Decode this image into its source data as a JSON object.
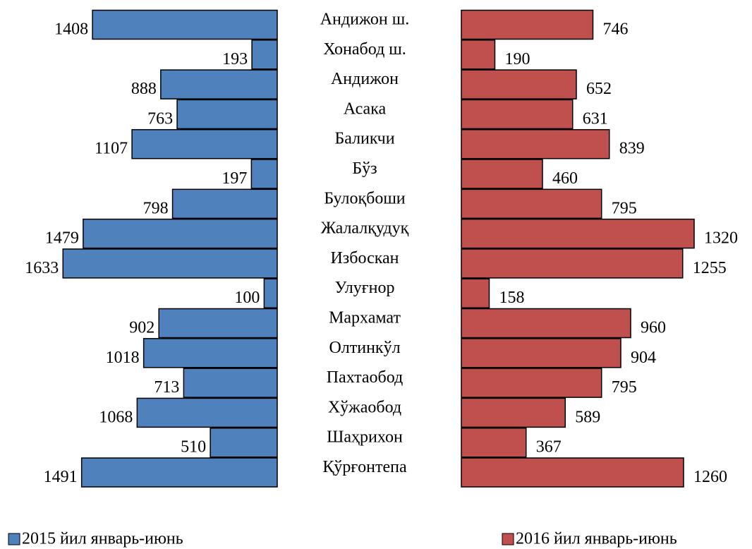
{
  "chart_data": {
    "type": "butterfly",
    "categories": [
      "Андижон ш.",
      "Хонабод ш.",
      "Андижон",
      "Асака",
      "Баликчи",
      "Бўз",
      "Булоқбоши",
      "Жалалқудуқ",
      "Избоскан",
      "Улуғнор",
      "Мархамат",
      "Олтинкўл",
      "Пахтаобод",
      "Хўжаобод",
      "Шаҳрихон",
      "Қўрғонтепа"
    ],
    "series": [
      {
        "name": "2015 йил январь-июнь",
        "color": "#4f81bd",
        "xlim": [
          0,
          2000
        ],
        "values": [
          1408,
          193,
          888,
          763,
          1107,
          197,
          798,
          1479,
          1633,
          100,
          902,
          1018,
          713,
          1068,
          510,
          1491
        ]
      },
      {
        "name": "2016 йил январь-июнь",
        "color": "#c0504d",
        "xlim": [
          0,
          1600
        ],
        "values": [
          746,
          190,
          652,
          631,
          839,
          460,
          795,
          1320,
          1255,
          158,
          960,
          904,
          795,
          589,
          367,
          1260
        ]
      }
    ]
  }
}
